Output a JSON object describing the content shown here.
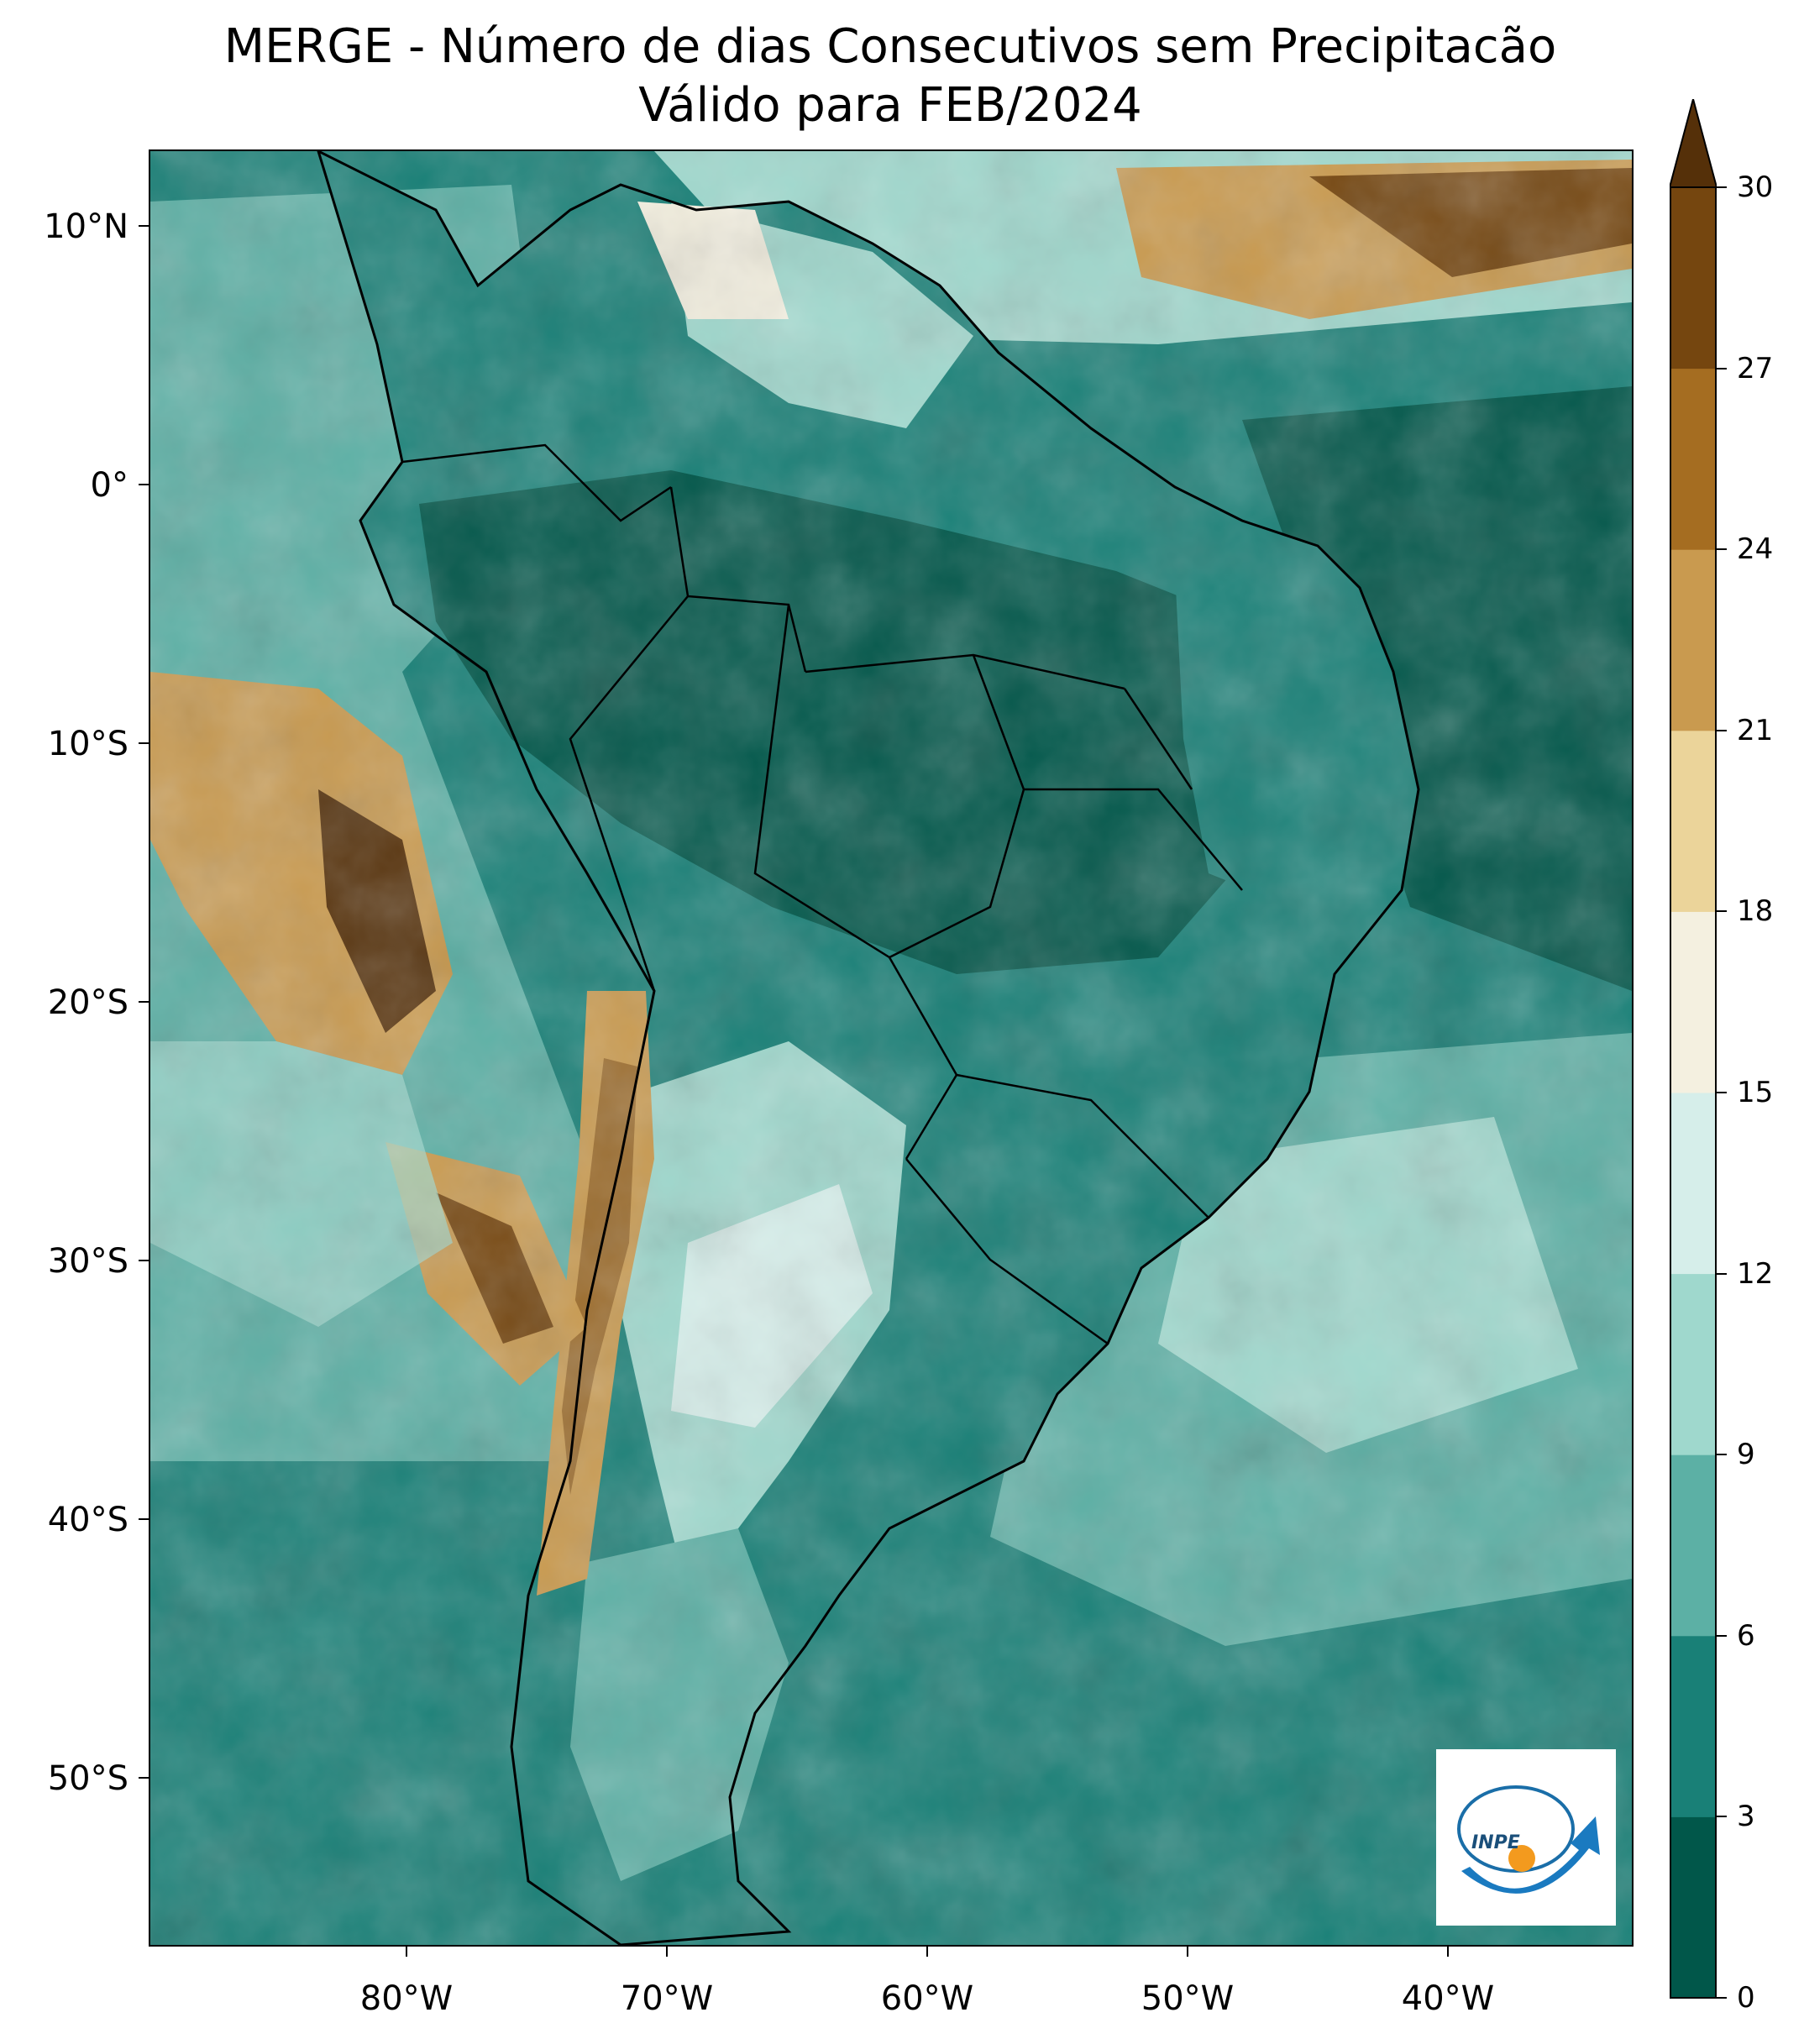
{
  "title": {
    "line1": "MERGE - Número de dias Consecutivos sem Precipitacão",
    "line2": "Válido para FEB/2024"
  },
  "map": {
    "lat_ticks": [
      "10°N",
      "0°",
      "10°S",
      "20°S",
      "30°S",
      "40°S",
      "50°S"
    ],
    "lon_ticks": [
      "80°W",
      "70°W",
      "60°W",
      "50°W",
      "40°W"
    ],
    "extent": {
      "lon_min": -89.5,
      "lon_max": -32.5,
      "lat_min": -56.5,
      "lat_max": 13
    }
  },
  "colorbar": {
    "ticks": [
      "0",
      "3",
      "6",
      "9",
      "12",
      "15",
      "18",
      "21",
      "24",
      "27",
      "30"
    ],
    "extend": "max",
    "colors": [
      "#01574a",
      "#198077",
      "#5cb0a5",
      "#9fd8cd",
      "#d6eeea",
      "#f4f0e0",
      "#ebd49a",
      "#c99a4f",
      "#a56d21",
      "#75460f",
      "#553009"
    ]
  },
  "logo": {
    "text": "INPE"
  }
}
